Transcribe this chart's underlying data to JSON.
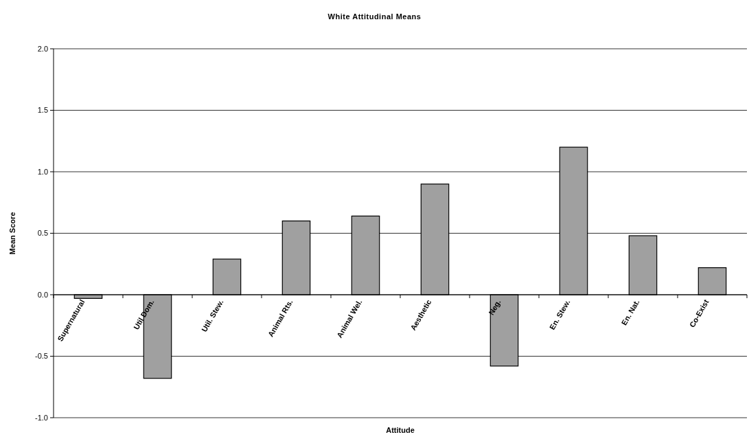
{
  "chart_data": {
    "type": "bar",
    "title": "White Attitudinal Means",
    "xlabel": "Attitude",
    "ylabel": "Mean Score",
    "categories": [
      "Supernatural",
      "Util Dom.",
      "Util. Stew.",
      "Animal Rts.",
      "Animal Wel.",
      "Aesthetic",
      "Neg.",
      "En. Stew.",
      "En. Nat.",
      "Co-Exist"
    ],
    "values": [
      -0.03,
      -0.68,
      0.29,
      0.6,
      0.64,
      0.9,
      -0.58,
      1.2,
      0.48,
      0.22
    ],
    "color": "#a0a0a0",
    "ylim": [
      -1,
      2
    ],
    "yticks": [
      {
        "value": -1,
        "label": "-1.0"
      },
      {
        "value": -0.5,
        "label": "-0.5"
      },
      {
        "value": 0,
        "label": "0.0"
      },
      {
        "value": 0.5,
        "label": "0.5"
      },
      {
        "value": 1,
        "label": "1.0"
      },
      {
        "value": 1.5,
        "label": "1.5"
      },
      {
        "value": 2,
        "label": "2.0"
      }
    ],
    "grid": "y"
  }
}
